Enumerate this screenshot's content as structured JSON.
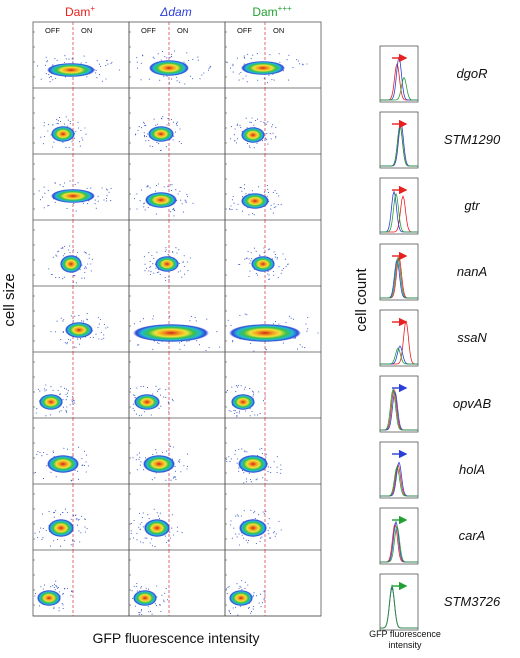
{
  "figure": {
    "strain_headers": [
      {
        "label": "Dam",
        "sup": "+",
        "color": "#e8201f",
        "italic": false
      },
      {
        "label": "Δdam",
        "sup": "",
        "color": "#2b3fd6",
        "italic": true
      },
      {
        "label": "Dam",
        "sup": "+++",
        "color": "#22a033",
        "italic": false
      }
    ],
    "state_labels": [
      "OFF",
      "ON"
    ],
    "y_axis_label": "cell size",
    "x_axis_label": "GFP fluorescence intensity",
    "hist_y_label": "cell count",
    "hist_x_label_line1": "GFP fluorescence",
    "hist_x_label_line2": "intensity",
    "colors": {
      "dam_plus": "#e8201f",
      "delta_dam": "#2b3fd6",
      "dam_ppp": "#22a033",
      "gate_line": "#d0303a"
    },
    "genes": [
      {
        "name": "dgoR",
        "arrow": "right",
        "arrow_color": "#e8201f"
      },
      {
        "name": "STM1290",
        "arrow": "right",
        "arrow_color": "#e8201f"
      },
      {
        "name": "gtr",
        "arrow": "right",
        "arrow_color": "#e8201f"
      },
      {
        "name": "nanA",
        "arrow": "right",
        "arrow_color": "#e8201f"
      },
      {
        "name": "ssaN",
        "arrow": "right",
        "arrow_color": "#e8201f"
      },
      {
        "name": "opvAB",
        "arrow": "right",
        "arrow_color": "#2b3fd6"
      },
      {
        "name": "holA",
        "arrow": "right",
        "arrow_color": "#2b3fd6"
      },
      {
        "name": "carA",
        "arrow": "right",
        "arrow_color": "#22a033"
      },
      {
        "name": "STM3726",
        "arrow": "right",
        "arrow_color": "#22a033"
      }
    ]
  }
}
